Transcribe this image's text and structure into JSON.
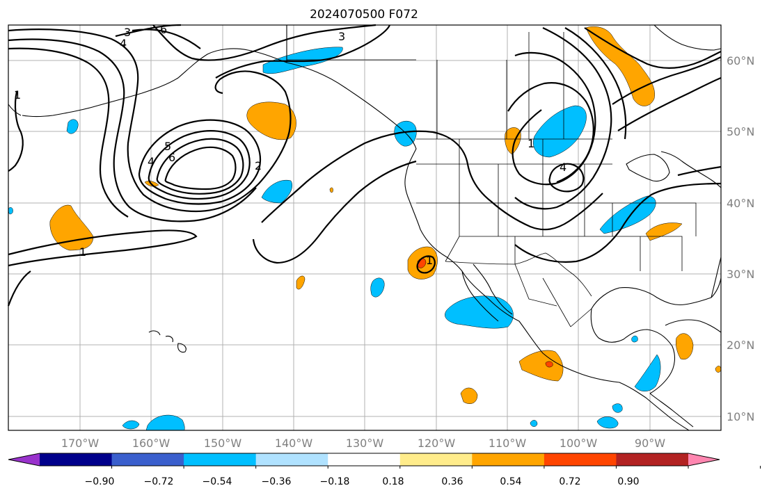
{
  "title": "2024070500 F072",
  "map": {
    "lon_range": [
      -180,
      -80
    ],
    "lat_range": [
      8,
      65
    ],
    "lon_ticks": [
      "170°W",
      "160°W",
      "150°W",
      "140°W",
      "130°W",
      "120°W",
      "110°W",
      "100°W",
      "90°W"
    ],
    "lat_ticks": [
      "60°N",
      "50°N",
      "40°N",
      "30°N",
      "20°N",
      "10°N"
    ],
    "gridlines": true,
    "contour_labels": [
      "1",
      "3",
      "6",
      "4",
      "5",
      "6",
      "4",
      "2",
      "3",
      "1",
      "4",
      "1",
      "1"
    ],
    "shaded_field_colors": {
      "neg_054_036": "#00bfff",
      "pos_036_054": "#ffa500",
      "pos_054_072": "#ff4500"
    }
  },
  "colorbar": {
    "extend": "both",
    "tick_labels": [
      "−0.90",
      "−0.72",
      "−0.54",
      "−0.36",
      "−0.18",
      "0.18",
      "0.36",
      "0.54",
      "0.72",
      "0.90"
    ],
    "colors": [
      "#9932cc",
      "#00008b",
      "#3a5fcd",
      "#00bfff",
      "#b0e2ff",
      "#ffffff",
      "#ffec8b",
      "#ffa500",
      "#ff4500",
      "#b22222",
      "#ff86b0"
    ]
  }
}
